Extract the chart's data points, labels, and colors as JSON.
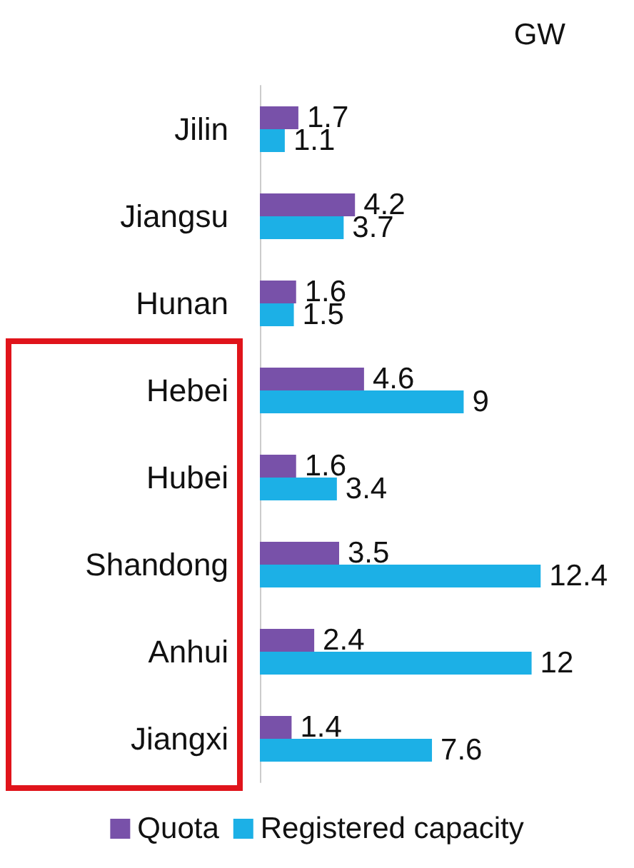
{
  "chart_data": {
    "type": "bar",
    "orientation": "horizontal",
    "categories": [
      "Jilin",
      "Jiangsu",
      "Hunan",
      "Hebei",
      "Hubei",
      "Shandong",
      "Anhui",
      "Jiangxi"
    ],
    "series": [
      {
        "name": "Quota",
        "color": "#7851a9",
        "values": [
          1.7,
          4.2,
          1.6,
          4.6,
          1.6,
          3.5,
          2.4,
          1.4
        ]
      },
      {
        "name": "Registered capacity",
        "color": "#1cb0e6",
        "values": [
          1.1,
          3.7,
          1.5,
          9,
          3.4,
          12.4,
          12,
          7.6
        ]
      }
    ],
    "annotations": [
      "GW"
    ],
    "data_labels": true,
    "grid": false,
    "legend": "bottom"
  }
}
